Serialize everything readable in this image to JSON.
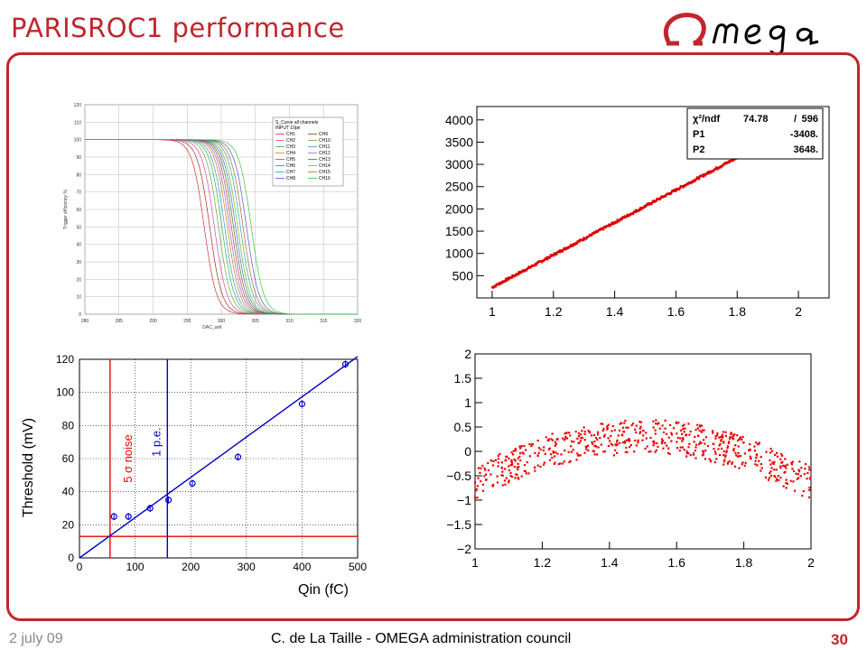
{
  "header": {
    "title": "PARISROC1 performance",
    "logo_text": "Omega"
  },
  "footer": {
    "date": "2 july 09",
    "author": "C. de La Taille - OMEGA administration council",
    "page": "30"
  },
  "colors": {
    "accent": "#c0262c",
    "fit_red": "#ff0000",
    "blue": "#0000cc"
  },
  "chart_data": [
    {
      "type": "line",
      "title": "",
      "xlabel": "DAC_unit",
      "ylabel": "Trigger efficiency %",
      "xlim": [
        280,
        320
      ],
      "ylim": [
        0,
        120
      ],
      "xticks": [
        "280",
        "285",
        "290",
        "295",
        "300",
        "305",
        "310",
        "315",
        "320"
      ],
      "yticks": [
        "0",
        "10",
        "20",
        "30",
        "40",
        "50",
        "60",
        "70",
        "80",
        "90",
        "100",
        "110",
        "120"
      ],
      "legend": {
        "title": "S_Curve all channels",
        "subtitle": "INPUT 10pe",
        "placement": "top-right",
        "entries": [
          "CH1",
          "CH9",
          "CH2",
          "CH10",
          "CH3",
          "CH11",
          "CH4",
          "CH12",
          "CH5",
          "CH13",
          "CH6",
          "CH14",
          "CH7",
          "CH15",
          "CH8",
          "CH16"
        ]
      },
      "series_midpoints": [
        297.5,
        298.3,
        299.0,
        299.6,
        300.1,
        300.5,
        300.9,
        301.2,
        301.5,
        301.8,
        302.1,
        302.4,
        302.8,
        303.2,
        303.7,
        304.4
      ],
      "plateau": 100
    },
    {
      "type": "scatter",
      "xlabel": "",
      "ylabel": "",
      "xlim": [
        0.95,
        2.1
      ],
      "ylim": [
        0,
        4300
      ],
      "xticks": [
        "1",
        "1.2",
        "1.4",
        "1.6",
        "1.8",
        "2"
      ],
      "yticks": [
        "500",
        "1000",
        "1500",
        "2000",
        "2500",
        "3000",
        "3500",
        "4000"
      ],
      "legend": {
        "chi2_label": "χ²/ndf",
        "chi2_value": "74.78",
        "separator": "/",
        "ndf_value": "596",
        "p1_label": "P1",
        "p1_value": "-3408.",
        "p2_label": "P2",
        "p2_value": "3648.",
        "placement": "top-right"
      },
      "fit": {
        "slope": 3648,
        "intercept": -3408
      },
      "x_range": [
        1.0,
        2.0
      ]
    },
    {
      "type": "scatter",
      "xlabel": "Qin (fC)",
      "ylabel": "Threshold (mV)",
      "xlim": [
        0,
        500
      ],
      "ylim": [
        0,
        120
      ],
      "xticks": [
        "0",
        "100",
        "200",
        "300",
        "400",
        "500"
      ],
      "yticks": [
        "0",
        "20",
        "40",
        "60",
        "80",
        "100",
        "120"
      ],
      "points": [
        {
          "x": 62,
          "y": 25
        },
        {
          "x": 88,
          "y": 25
        },
        {
          "x": 127,
          "y": 30
        },
        {
          "x": 160,
          "y": 35
        },
        {
          "x": 203,
          "y": 45
        },
        {
          "x": 285,
          "y": 61
        },
        {
          "x": 400,
          "y": 93
        },
        {
          "x": 478,
          "y": 117
        }
      ],
      "fit": {
        "slope": 0.2433,
        "intercept": 0
      },
      "vline_noise": {
        "x": 55,
        "label": "5 σ noise"
      },
      "vline_pe": {
        "x": 158,
        "label": "1 p.e."
      },
      "hline": {
        "y": 13
      }
    },
    {
      "type": "scatter",
      "xlabel": "",
      "ylabel": "",
      "xlim": [
        1,
        2
      ],
      "ylim": [
        -2,
        2
      ],
      "xticks": [
        "1",
        "1.2",
        "1.4",
        "1.6",
        "1.8",
        "2"
      ],
      "yticks": [
        "-2",
        "-1.5",
        "-1",
        "-0.5",
        "0",
        "0.5",
        "1",
        "1.5",
        "2"
      ],
      "n_points": 600,
      "residual_profile": "arched, mean ≈ 0.3 near x=1.5, ≈ -0.3 at edges, spread ≈ ±0.3"
    }
  ]
}
